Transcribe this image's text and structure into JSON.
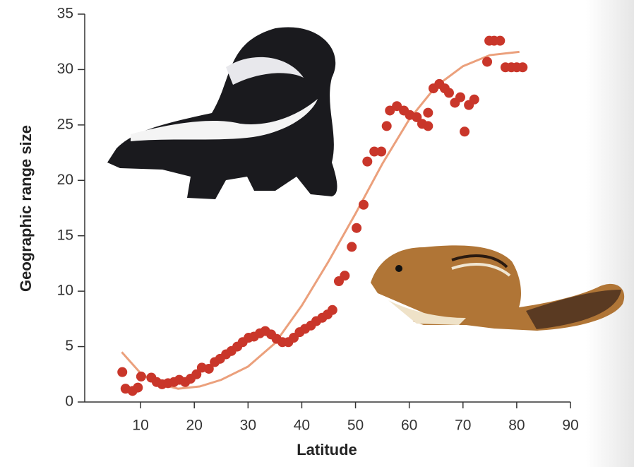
{
  "chart_data": {
    "type": "scatter",
    "xlabel": "Latitude",
    "ylabel": "Geographic range size",
    "x": [
      6.6,
      7.2,
      8.5,
      9.5,
      10.1,
      12,
      13,
      14,
      15.1,
      16.2,
      17.2,
      18.3,
      19.3,
      20.4,
      21.4,
      22.7,
      23.8,
      24.8,
      25.9,
      26.9,
      28,
      29,
      30.1,
      31.1,
      32.2,
      33.2,
      34.3,
      35.3,
      36.4,
      37.5,
      38.5,
      39.6,
      40.6,
      41.7,
      42.7,
      43.8,
      44.8,
      45.7,
      46.9,
      48,
      49.3,
      50.2,
      51.5,
      52.2,
      53.5,
      54.8,
      55.8,
      56.4,
      57.7,
      59,
      60.1,
      61.4,
      62.4,
      63.5,
      63.5,
      64.5,
      65.6,
      66.6,
      67.4,
      68.5,
      69.5,
      70.3,
      71.1,
      72.1,
      74.5,
      74.9,
      75.8,
      76.9,
      77.9,
      79,
      80,
      81.1
    ],
    "values": [
      2.7,
      1.2,
      1.0,
      1.3,
      2.3,
      2.2,
      1.8,
      1.6,
      1.7,
      1.8,
      2.0,
      1.8,
      2.1,
      2.5,
      3.1,
      3.0,
      3.6,
      3.9,
      4.3,
      4.6,
      5.0,
      5.4,
      5.8,
      5.9,
      6.2,
      6.4,
      6.1,
      5.7,
      5.4,
      5.4,
      5.8,
      6.3,
      6.6,
      6.9,
      7.3,
      7.6,
      7.9,
      8.3,
      10.9,
      11.4,
      14,
      15.7,
      17.8,
      21.7,
      22.6,
      22.6,
      24.9,
      26.3,
      26.7,
      26.3,
      25.9,
      25.7,
      25.1,
      26.1,
      24.9,
      28.3,
      28.7,
      28.3,
      27.9,
      27,
      27.5,
      24.4,
      26.8,
      27.3,
      30.7,
      32.6,
      32.6,
      32.6,
      30.2,
      30.2,
      30.2,
      30.2
    ],
    "color": "#c9362a",
    "fit": {
      "x": [
        6.5,
        10,
        13,
        17,
        21,
        25,
        30,
        35,
        40,
        45,
        50,
        55,
        60,
        65,
        70,
        75,
        80.5
      ],
      "values": [
        4.5,
        2.6,
        1.7,
        1.2,
        1.4,
        2.0,
        3.2,
        5.3,
        8.7,
        12.7,
        17,
        21.5,
        25.5,
        28.5,
        30.3,
        31.3,
        31.6
      ],
      "color": "#eba07c"
    },
    "xlim": [
      0,
      90
    ],
    "ylim": [
      0,
      35
    ],
    "xticks": [
      10,
      20,
      30,
      40,
      50,
      60,
      70,
      80,
      90
    ],
    "yticks": [
      0,
      5,
      10,
      15,
      20,
      25,
      30,
      35
    ]
  }
}
